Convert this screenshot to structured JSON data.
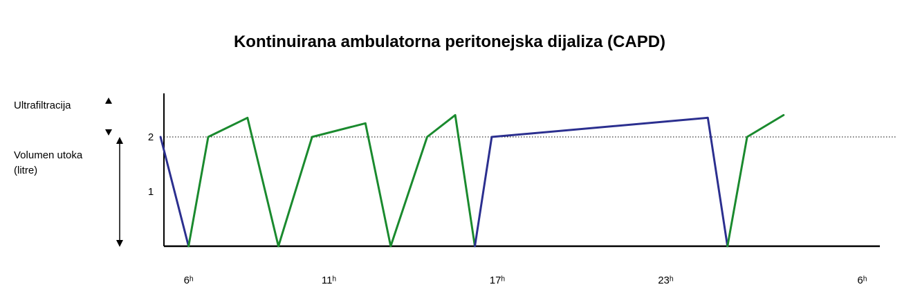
{
  "chart_data": {
    "type": "line",
    "title": "Kontinuirana ambulatorna peritonejska dijaliza (CAPD)",
    "ylabel_top": "Ultrafiltracija",
    "ylabel_main_1": "Volumen utoka",
    "ylabel_main_2": "(litre)",
    "y_ticks": [
      {
        "label": "2",
        "value": 2
      },
      {
        "label": "1",
        "value": 1
      }
    ],
    "ylim": [
      0,
      2.5
    ],
    "xlim": [
      4.9,
      30.95
    ],
    "x_ticks": [
      {
        "label": "6ʰ",
        "value": 6
      },
      {
        "label": "11ʰ",
        "value": 11
      },
      {
        "label": "17ʰ",
        "value": 17
      },
      {
        "label": "23ʰ",
        "value": 23
      },
      {
        "label": "6ʰ",
        "value": 30
      }
    ],
    "reference_line": {
      "y": 2,
      "style": "dotted"
    },
    "colors": {
      "drain": "#2b2f8f",
      "fill": "#1a8a2e",
      "axis": "#000000"
    },
    "segments": [
      {
        "phase": "drain",
        "points": [
          [
            5.0,
            2.0
          ],
          [
            6.0,
            0.0
          ]
        ]
      },
      {
        "phase": "fill",
        "points": [
          [
            6.0,
            0.0
          ],
          [
            6.7,
            2.0
          ],
          [
            8.1,
            2.35
          ],
          [
            9.2,
            0.0
          ],
          [
            10.4,
            2.0
          ],
          [
            12.3,
            2.25
          ],
          [
            13.2,
            0.0
          ],
          [
            14.5,
            2.0
          ],
          [
            15.5,
            2.4
          ],
          [
            16.2,
            0.0
          ]
        ]
      },
      {
        "phase": "drain",
        "points": [
          [
            16.2,
            0.0
          ],
          [
            16.8,
            2.0
          ],
          [
            24.5,
            2.35
          ],
          [
            25.2,
            0.0
          ]
        ]
      },
      {
        "phase": "fill",
        "points": [
          [
            25.2,
            0.0
          ],
          [
            25.9,
            2.0
          ],
          [
            27.2,
            2.4
          ]
        ]
      }
    ]
  }
}
